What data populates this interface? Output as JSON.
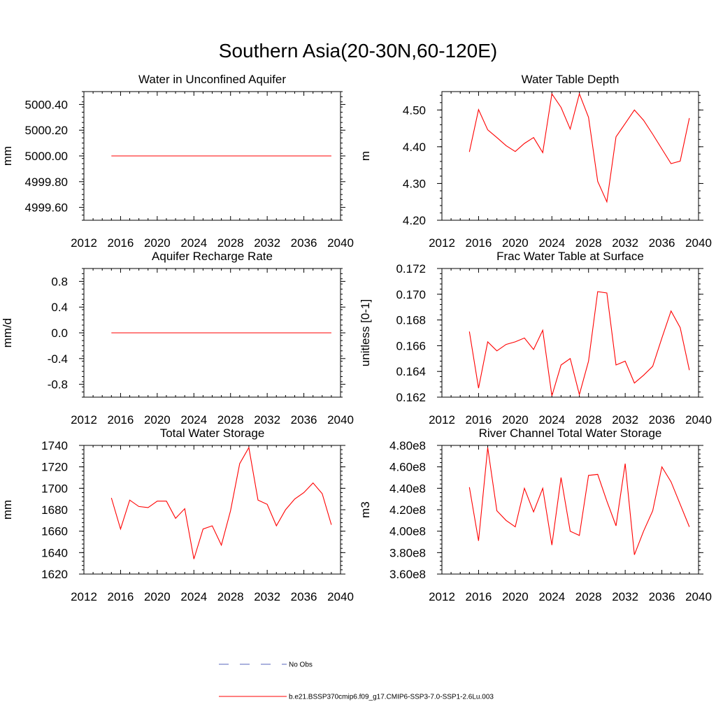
{
  "figure_title": "Southern Asia(20-30N,60-120E)",
  "legend": {
    "position": "bottom-center",
    "entries": [
      {
        "label": "No Obs",
        "color": "#5566bb",
        "style": "dashed"
      },
      {
        "label": "b.e21.BSSP370cmip6.f09_g17.CMIP6-SSP3-7.0-SSP1-2.6Lu.003",
        "color": "#ff0000",
        "style": "solid"
      }
    ]
  },
  "chart_data": [
    {
      "type": "line",
      "title": "Water in Unconfined Aquifer",
      "xlabel": "",
      "ylabel": "mm",
      "xlim": [
        2012,
        2040
      ],
      "ylim": [
        4999.5,
        5000.5
      ],
      "xticks": [
        2012,
        2016,
        2020,
        2024,
        2028,
        2032,
        2036,
        2040
      ],
      "yticks": [
        4999.6,
        4999.8,
        5000.0,
        5000.2,
        5000.4
      ],
      "ytick_labels": [
        "4999.60",
        "4999.80",
        "5000.00",
        "5000.20",
        "5000.40"
      ],
      "x": [
        2015,
        2016,
        2017,
        2018,
        2019,
        2020,
        2021,
        2022,
        2023,
        2024,
        2025,
        2026,
        2027,
        2028,
        2029,
        2030,
        2031,
        2032,
        2033,
        2034,
        2035,
        2036,
        2037,
        2038,
        2039
      ],
      "series": [
        {
          "color": "#ff0000",
          "values": [
            5000,
            5000,
            5000,
            5000,
            5000,
            5000,
            5000,
            5000,
            5000,
            5000,
            5000,
            5000,
            5000,
            5000,
            5000,
            5000,
            5000,
            5000,
            5000,
            5000,
            5000,
            5000,
            5000,
            5000,
            5000
          ]
        }
      ]
    },
    {
      "type": "line",
      "title": "Water Table Depth",
      "xlabel": "",
      "ylabel": "m",
      "xlim": [
        2012,
        2040
      ],
      "ylim": [
        4.2,
        4.55
      ],
      "xticks": [
        2012,
        2016,
        2020,
        2024,
        2028,
        2032,
        2036,
        2040
      ],
      "yticks": [
        4.2,
        4.3,
        4.4,
        4.5
      ],
      "ytick_labels": [
        "4.20",
        "4.30",
        "4.40",
        "4.50"
      ],
      "x": [
        2015,
        2016,
        2017,
        2018,
        2019,
        2020,
        2021,
        2022,
        2023,
        2024,
        2025,
        2026,
        2027,
        2028,
        2029,
        2030,
        2031,
        2032,
        2033,
        2034,
        2035,
        2036,
        2037,
        2038,
        2039
      ],
      "series": [
        {
          "color": "#ff0000",
          "values": [
            4.386,
            4.501,
            4.446,
            4.425,
            4.403,
            4.387,
            4.409,
            4.425,
            4.384,
            4.544,
            4.507,
            4.448,
            4.544,
            4.48,
            4.306,
            4.25,
            4.427,
            4.463,
            4.5,
            4.472,
            4.434,
            4.394,
            4.354,
            4.361,
            4.478
          ]
        }
      ]
    },
    {
      "type": "line",
      "title": "Aquifer Recharge Rate",
      "xlabel": "",
      "ylabel": "mm/d",
      "xlim": [
        2012,
        2040
      ],
      "ylim": [
        -1.0,
        1.0
      ],
      "xticks": [
        2012,
        2016,
        2020,
        2024,
        2028,
        2032,
        2036,
        2040
      ],
      "yticks": [
        -0.8,
        -0.4,
        0.0,
        0.4,
        0.8
      ],
      "ytick_labels": [
        "-0.8",
        "-0.4",
        "0.0",
        "0.4",
        "0.8"
      ],
      "x": [
        2015,
        2016,
        2017,
        2018,
        2019,
        2020,
        2021,
        2022,
        2023,
        2024,
        2025,
        2026,
        2027,
        2028,
        2029,
        2030,
        2031,
        2032,
        2033,
        2034,
        2035,
        2036,
        2037,
        2038,
        2039
      ],
      "series": [
        {
          "color": "#ff0000",
          "values": [
            0,
            0,
            0,
            0,
            0,
            0,
            0,
            0,
            0,
            0,
            0,
            0,
            0,
            0,
            0,
            0,
            0,
            0,
            0,
            0,
            0,
            0,
            0,
            0,
            0
          ]
        }
      ]
    },
    {
      "type": "line",
      "title": "Frac Water Table at Surface",
      "xlabel": "",
      "ylabel": "unitless [0-1]",
      "xlim": [
        2012,
        2040
      ],
      "ylim": [
        0.162,
        0.172
      ],
      "xticks": [
        2012,
        2016,
        2020,
        2024,
        2028,
        2032,
        2036,
        2040
      ],
      "yticks": [
        0.162,
        0.164,
        0.166,
        0.168,
        0.17,
        0.172
      ],
      "ytick_labels": [
        "0.162",
        "0.164",
        "0.166",
        "0.168",
        "0.170",
        "0.172"
      ],
      "x": [
        2015,
        2016,
        2017,
        2018,
        2019,
        2020,
        2021,
        2022,
        2023,
        2024,
        2025,
        2026,
        2027,
        2028,
        2029,
        2030,
        2031,
        2032,
        2033,
        2034,
        2035,
        2036,
        2037,
        2038,
        2039
      ],
      "series": [
        {
          "color": "#ff0000",
          "values": [
            0.1671,
            0.1627,
            0.1663,
            0.1656,
            0.1661,
            0.1663,
            0.1666,
            0.1657,
            0.1672,
            0.1621,
            0.1645,
            0.165,
            0.1622,
            0.1648,
            0.1702,
            0.1701,
            0.1645,
            0.1648,
            0.1631,
            0.1637,
            0.1644,
            0.1666,
            0.1687,
            0.1674,
            0.1641
          ]
        }
      ]
    },
    {
      "type": "line",
      "title": "Total Water Storage",
      "xlabel": "",
      "ylabel": "mm",
      "xlim": [
        2012,
        2040
      ],
      "ylim": [
        1620,
        1740
      ],
      "xticks": [
        2012,
        2016,
        2020,
        2024,
        2028,
        2032,
        2036,
        2040
      ],
      "yticks": [
        1620,
        1640,
        1660,
        1680,
        1700,
        1720,
        1740
      ],
      "ytick_labels": [
        "1620",
        "1640",
        "1660",
        "1680",
        "1700",
        "1720",
        "1740"
      ],
      "x": [
        2015,
        2016,
        2017,
        2018,
        2019,
        2020,
        2021,
        2022,
        2023,
        2024,
        2025,
        2026,
        2027,
        2028,
        2029,
        2030,
        2031,
        2032,
        2033,
        2034,
        2035,
        2036,
        2037,
        2038,
        2039
      ],
      "series": [
        {
          "color": "#ff0000",
          "values": [
            1691,
            1662,
            1689,
            1683,
            1682,
            1688,
            1688,
            1672,
            1681,
            1634,
            1662,
            1665,
            1647,
            1679,
            1723,
            1738,
            1689,
            1685,
            1665,
            1680,
            1690,
            1696,
            1705,
            1695,
            1666
          ]
        }
      ]
    },
    {
      "type": "line",
      "title": "River Channel Total Water Storage",
      "xlabel": "",
      "ylabel": "m3",
      "xlim": [
        2012,
        2040
      ],
      "ylim": [
        360000000.0,
        480000000.0
      ],
      "xticks": [
        2012,
        2016,
        2020,
        2024,
        2028,
        2032,
        2036,
        2040
      ],
      "yticks": [
        360000000.0,
        380000000.0,
        400000000.0,
        420000000.0,
        440000000.0,
        460000000.0,
        480000000.0
      ],
      "ytick_labels": [
        "3.60e8",
        "3.80e8",
        "4.00e8",
        "4.20e8",
        "4.40e8",
        "4.60e8",
        "4.80e8"
      ],
      "x": [
        2015,
        2016,
        2017,
        2018,
        2019,
        2020,
        2021,
        2022,
        2023,
        2024,
        2025,
        2026,
        2027,
        2028,
        2029,
        2030,
        2031,
        2032,
        2033,
        2034,
        2035,
        2036,
        2037,
        2038,
        2039
      ],
      "series": [
        {
          "color": "#ff0000",
          "values": [
            441000000.0,
            391000000.0,
            478000000.0,
            419000000.0,
            410000000.0,
            404000000.0,
            440000000.0,
            418000000.0,
            440000000.0,
            387000000.0,
            450000000.0,
            400000000.0,
            396000000.0,
            452000000.0,
            453000000.0,
            428000000.0,
            405000000.0,
            463000000.0,
            378000000.0,
            400000000.0,
            419000000.0,
            460000000.0,
            446000000.0,
            425000000.0,
            404000000.0
          ]
        }
      ]
    }
  ]
}
